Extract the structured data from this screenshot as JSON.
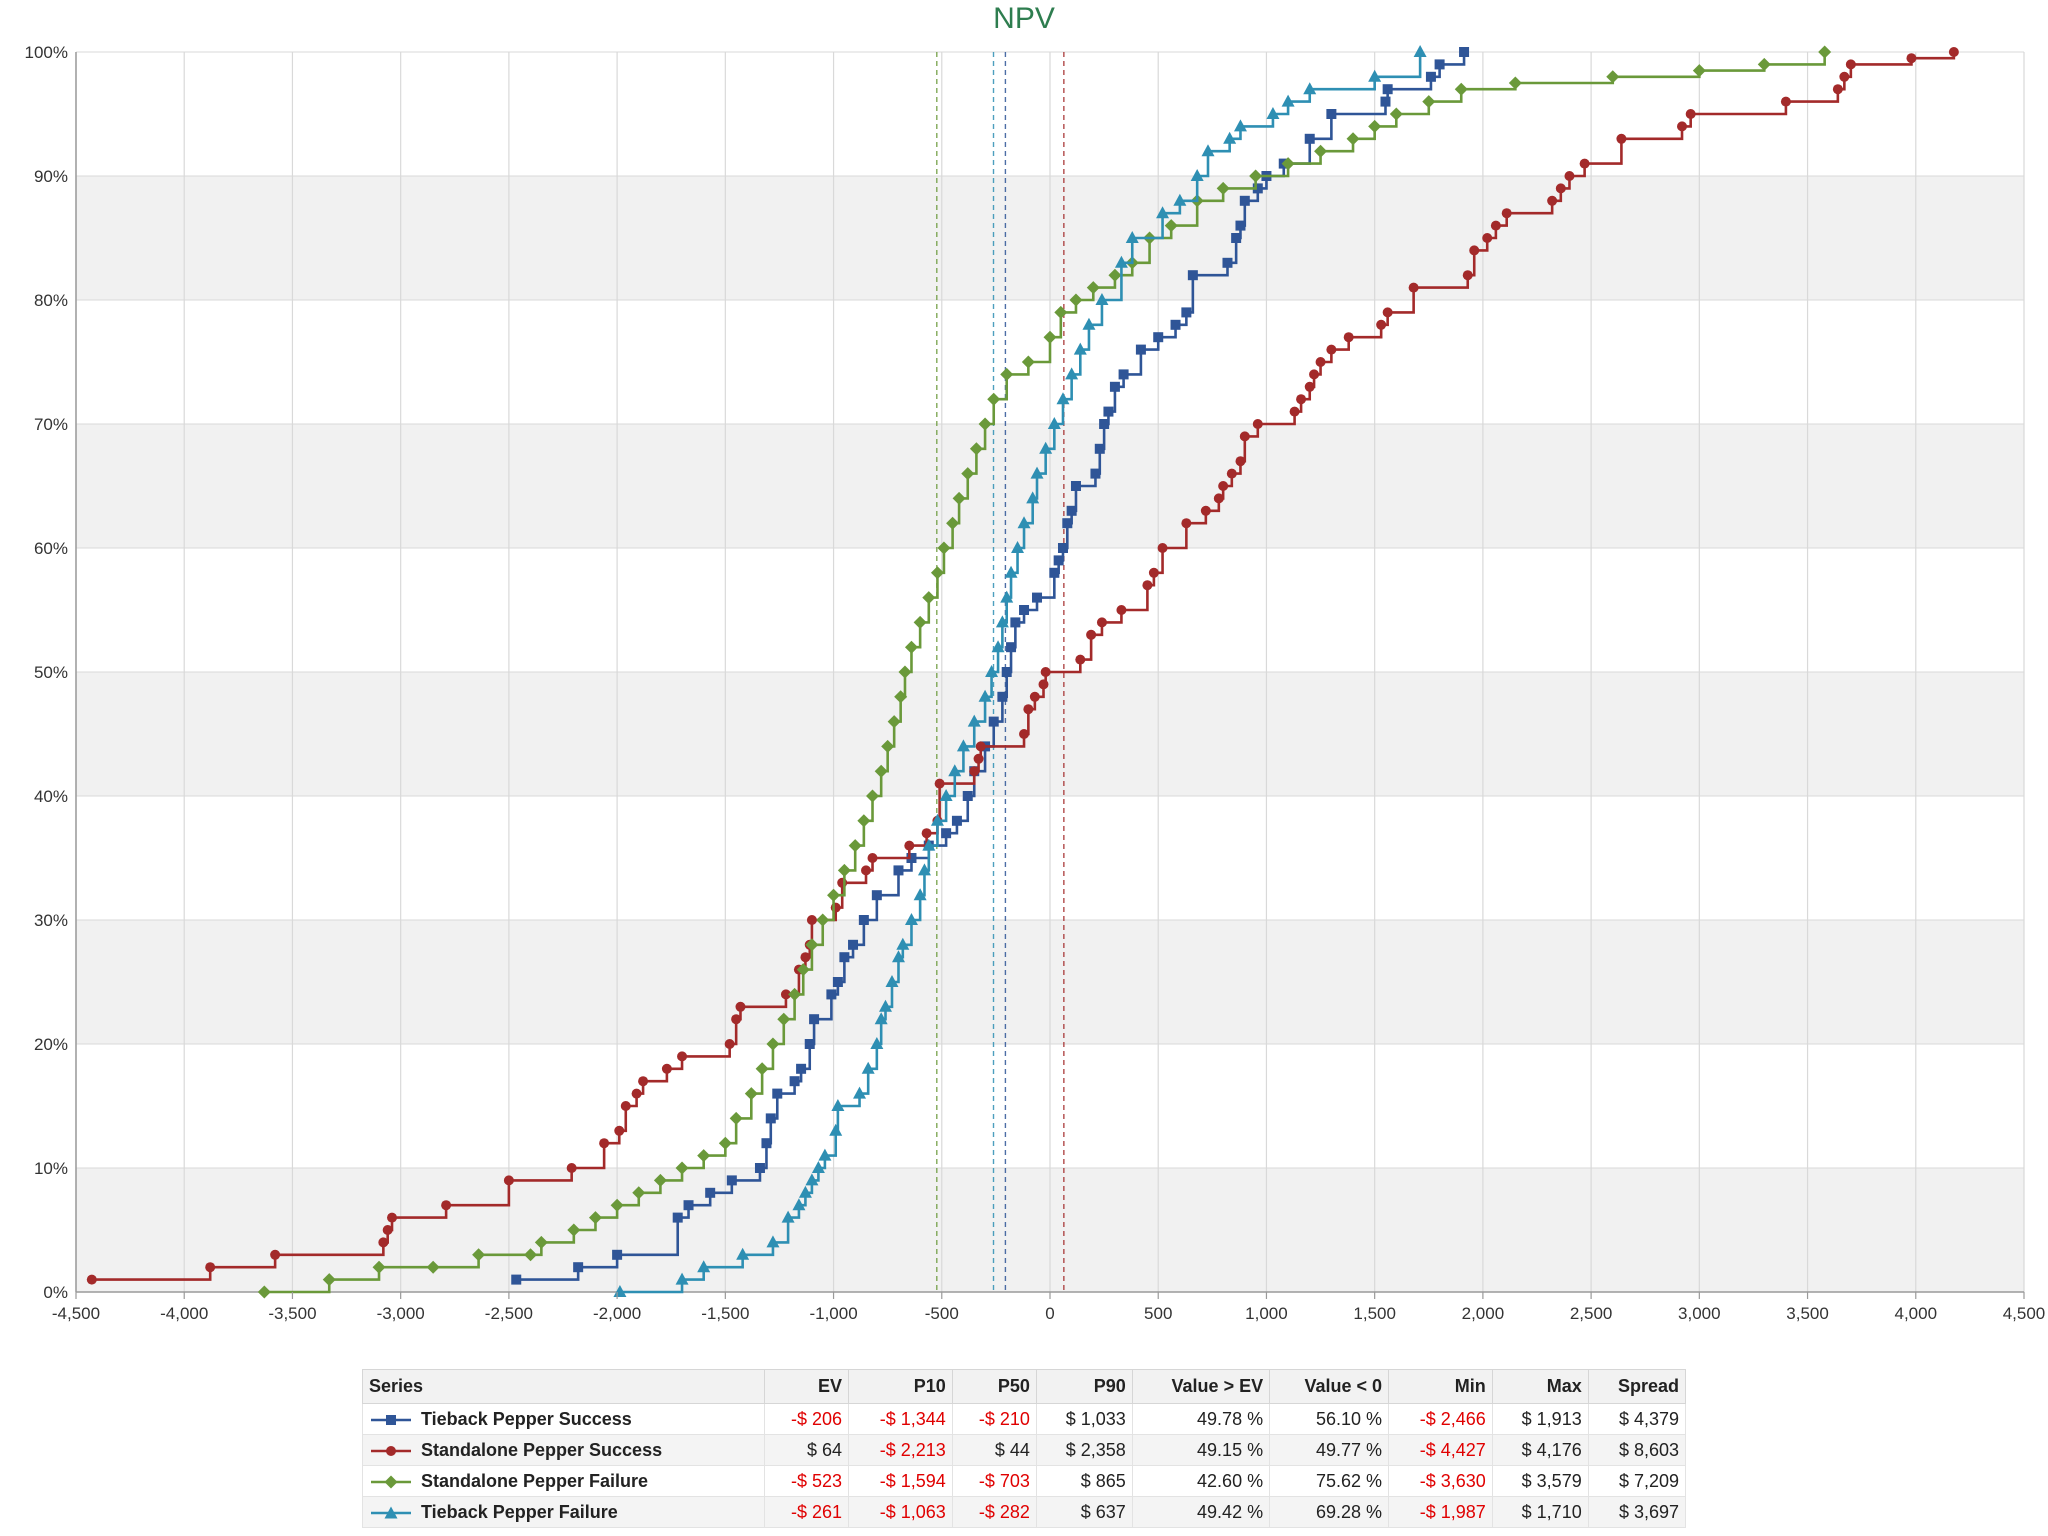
{
  "chart_data": {
    "type": "line",
    "title": "NPV",
    "xlim": [
      -4500,
      4500
    ],
    "ylim": [
      0,
      100
    ],
    "x_ticks": [
      -4500,
      -4000,
      -3500,
      -3000,
      -2500,
      -2000,
      -1500,
      -1000,
      -500,
      0,
      500,
      1000,
      1500,
      2000,
      2500,
      3000,
      3500,
      4000,
      4500
    ],
    "x_tick_labels": [
      "-4,500",
      "-4,000",
      "-3,500",
      "-3,000",
      "-2,500",
      "-2,000",
      "-1,500",
      "-1,000",
      "-500",
      "0",
      "500",
      "1,000",
      "1,500",
      "2,000",
      "2,500",
      "3,000",
      "3,500",
      "4,000",
      "4,500"
    ],
    "y_ticks": [
      0,
      10,
      20,
      30,
      40,
      50,
      60,
      70,
      80,
      90,
      100
    ],
    "y_tick_labels": [
      "0%",
      "10%",
      "20%",
      "30%",
      "40%",
      "50%",
      "60%",
      "70%",
      "80%",
      "90%",
      "100%"
    ],
    "grid": true,
    "alternating_bands": true,
    "series": [
      {
        "name": "Tieback Pepper Success",
        "color": "#2f5597",
        "marker": "square",
        "ev": -206,
        "points": [
          [
            -2466,
            1
          ],
          [
            -2180,
            2
          ],
          [
            -2000,
            3
          ],
          [
            -1720,
            6
          ],
          [
            -1670,
            7
          ],
          [
            -1570,
            8
          ],
          [
            -1470,
            9
          ],
          [
            -1340,
            10
          ],
          [
            -1310,
            12
          ],
          [
            -1290,
            14
          ],
          [
            -1260,
            16
          ],
          [
            -1180,
            17
          ],
          [
            -1150,
            18
          ],
          [
            -1110,
            20
          ],
          [
            -1090,
            22
          ],
          [
            -1010,
            24
          ],
          [
            -980,
            25
          ],
          [
            -950,
            27
          ],
          [
            -910,
            28
          ],
          [
            -860,
            30
          ],
          [
            -800,
            32
          ],
          [
            -700,
            34
          ],
          [
            -640,
            35
          ],
          [
            -560,
            36
          ],
          [
            -480,
            37
          ],
          [
            -430,
            38
          ],
          [
            -380,
            40
          ],
          [
            -350,
            42
          ],
          [
            -300,
            44
          ],
          [
            -260,
            46
          ],
          [
            -220,
            48
          ],
          [
            -200,
            50
          ],
          [
            -180,
            52
          ],
          [
            -160,
            54
          ],
          [
            -120,
            55
          ],
          [
            -60,
            56
          ],
          [
            20,
            58
          ],
          [
            40,
            59
          ],
          [
            60,
            60
          ],
          [
            80,
            62
          ],
          [
            100,
            63
          ],
          [
            120,
            65
          ],
          [
            210,
            66
          ],
          [
            230,
            68
          ],
          [
            250,
            70
          ],
          [
            270,
            71
          ],
          [
            300,
            73
          ],
          [
            340,
            74
          ],
          [
            420,
            76
          ],
          [
            500,
            77
          ],
          [
            580,
            78
          ],
          [
            630,
            79
          ],
          [
            660,
            82
          ],
          [
            820,
            83
          ],
          [
            860,
            85
          ],
          [
            880,
            86
          ],
          [
            900,
            88
          ],
          [
            960,
            89
          ],
          [
            1000,
            90
          ],
          [
            1080,
            91
          ],
          [
            1200,
            93
          ],
          [
            1300,
            95
          ],
          [
            1550,
            96
          ],
          [
            1560,
            97
          ],
          [
            1760,
            98
          ],
          [
            1800,
            99
          ],
          [
            1913,
            100
          ]
        ]
      },
      {
        "name": "Standalone Pepper Success",
        "color": "#a32a2a",
        "marker": "circle",
        "ev": 64,
        "points": [
          [
            -4427,
            1
          ],
          [
            -3880,
            2
          ],
          [
            -3580,
            3
          ],
          [
            -3080,
            4
          ],
          [
            -3060,
            5
          ],
          [
            -3040,
            6
          ],
          [
            -2790,
            7
          ],
          [
            -2500,
            9
          ],
          [
            -2210,
            10
          ],
          [
            -2060,
            12
          ],
          [
            -1990,
            13
          ],
          [
            -1960,
            15
          ],
          [
            -1910,
            16
          ],
          [
            -1880,
            17
          ],
          [
            -1770,
            18
          ],
          [
            -1700,
            19
          ],
          [
            -1480,
            20
          ],
          [
            -1450,
            22
          ],
          [
            -1430,
            23
          ],
          [
            -1220,
            24
          ],
          [
            -1160,
            26
          ],
          [
            -1130,
            27
          ],
          [
            -1110,
            28
          ],
          [
            -1100,
            30
          ],
          [
            -990,
            31
          ],
          [
            -960,
            33
          ],
          [
            -850,
            34
          ],
          [
            -820,
            35
          ],
          [
            -650,
            36
          ],
          [
            -570,
            37
          ],
          [
            -520,
            38
          ],
          [
            -510,
            41
          ],
          [
            -350,
            42
          ],
          [
            -330,
            43
          ],
          [
            -320,
            44
          ],
          [
            -120,
            45
          ],
          [
            -100,
            47
          ],
          [
            -70,
            48
          ],
          [
            -30,
            49
          ],
          [
            -20,
            50
          ],
          [
            140,
            51
          ],
          [
            190,
            53
          ],
          [
            240,
            54
          ],
          [
            330,
            55
          ],
          [
            450,
            57
          ],
          [
            480,
            58
          ],
          [
            520,
            60
          ],
          [
            630,
            62
          ],
          [
            720,
            63
          ],
          [
            780,
            64
          ],
          [
            800,
            65
          ],
          [
            840,
            66
          ],
          [
            880,
            67
          ],
          [
            900,
            69
          ],
          [
            960,
            70
          ],
          [
            1130,
            71
          ],
          [
            1160,
            72
          ],
          [
            1200,
            73
          ],
          [
            1220,
            74
          ],
          [
            1250,
            75
          ],
          [
            1300,
            76
          ],
          [
            1380,
            77
          ],
          [
            1530,
            78
          ],
          [
            1560,
            79
          ],
          [
            1680,
            81
          ],
          [
            1930,
            82
          ],
          [
            1960,
            84
          ],
          [
            2020,
            85
          ],
          [
            2060,
            86
          ],
          [
            2110,
            87
          ],
          [
            2320,
            88
          ],
          [
            2360,
            89
          ],
          [
            2400,
            90
          ],
          [
            2470,
            91
          ],
          [
            2640,
            93
          ],
          [
            2920,
            94
          ],
          [
            2960,
            95
          ],
          [
            3400,
            96
          ],
          [
            3640,
            97
          ],
          [
            3670,
            98
          ],
          [
            3700,
            99
          ],
          [
            3980,
            99.5
          ],
          [
            4176,
            100
          ]
        ]
      },
      {
        "name": "Standalone Pepper Failure",
        "color": "#6a993a",
        "marker": "diamond",
        "ev": -523,
        "points": [
          [
            -3630,
            0
          ],
          [
            -3330,
            1
          ],
          [
            -3100,
            2
          ],
          [
            -2850,
            2
          ],
          [
            -2640,
            3
          ],
          [
            -2400,
            3
          ],
          [
            -2350,
            4
          ],
          [
            -2200,
            5
          ],
          [
            -2100,
            6
          ],
          [
            -2000,
            7
          ],
          [
            -1900,
            8
          ],
          [
            -1800,
            9
          ],
          [
            -1700,
            10
          ],
          [
            -1600,
            11
          ],
          [
            -1500,
            12
          ],
          [
            -1450,
            14
          ],
          [
            -1380,
            16
          ],
          [
            -1330,
            18
          ],
          [
            -1280,
            20
          ],
          [
            -1230,
            22
          ],
          [
            -1180,
            24
          ],
          [
            -1140,
            26
          ],
          [
            -1100,
            28
          ],
          [
            -1050,
            30
          ],
          [
            -1000,
            32
          ],
          [
            -950,
            34
          ],
          [
            -900,
            36
          ],
          [
            -860,
            38
          ],
          [
            -820,
            40
          ],
          [
            -780,
            42
          ],
          [
            -750,
            44
          ],
          [
            -720,
            46
          ],
          [
            -690,
            48
          ],
          [
            -670,
            50
          ],
          [
            -640,
            52
          ],
          [
            -600,
            54
          ],
          [
            -560,
            56
          ],
          [
            -520,
            58
          ],
          [
            -490,
            60
          ],
          [
            -450,
            62
          ],
          [
            -420,
            64
          ],
          [
            -380,
            66
          ],
          [
            -340,
            68
          ],
          [
            -300,
            70
          ],
          [
            -260,
            72
          ],
          [
            -200,
            74
          ],
          [
            -100,
            75
          ],
          [
            0,
            77
          ],
          [
            50,
            79
          ],
          [
            120,
            80
          ],
          [
            200,
            81
          ],
          [
            300,
            82
          ],
          [
            380,
            83
          ],
          [
            460,
            85
          ],
          [
            560,
            86
          ],
          [
            680,
            88
          ],
          [
            800,
            89
          ],
          [
            950,
            90
          ],
          [
            1100,
            91
          ],
          [
            1250,
            92
          ],
          [
            1400,
            93
          ],
          [
            1500,
            94
          ],
          [
            1600,
            95
          ],
          [
            1750,
            96
          ],
          [
            1900,
            97
          ],
          [
            2150,
            97.5
          ],
          [
            2600,
            98
          ],
          [
            3000,
            98.5
          ],
          [
            3300,
            99
          ],
          [
            3579,
            100
          ]
        ]
      },
      {
        "name": "Tieback Pepper Failure",
        "color": "#2e8fb3",
        "marker": "triangle",
        "ev": -261,
        "points": [
          [
            -1987,
            0
          ],
          [
            -1700,
            1
          ],
          [
            -1600,
            2
          ],
          [
            -1420,
            3
          ],
          [
            -1280,
            4
          ],
          [
            -1210,
            6
          ],
          [
            -1160,
            7
          ],
          [
            -1130,
            8
          ],
          [
            -1100,
            9
          ],
          [
            -1070,
            10
          ],
          [
            -1040,
            11
          ],
          [
            -990,
            13
          ],
          [
            -980,
            15
          ],
          [
            -880,
            16
          ],
          [
            -840,
            18
          ],
          [
            -800,
            20
          ],
          [
            -780,
            22
          ],
          [
            -760,
            23
          ],
          [
            -730,
            25
          ],
          [
            -700,
            27
          ],
          [
            -680,
            28
          ],
          [
            -640,
            30
          ],
          [
            -600,
            32
          ],
          [
            -580,
            34
          ],
          [
            -560,
            36
          ],
          [
            -520,
            38
          ],
          [
            -480,
            40
          ],
          [
            -440,
            42
          ],
          [
            -400,
            44
          ],
          [
            -350,
            46
          ],
          [
            -300,
            48
          ],
          [
            -270,
            50
          ],
          [
            -240,
            52
          ],
          [
            -220,
            54
          ],
          [
            -200,
            56
          ],
          [
            -180,
            58
          ],
          [
            -150,
            60
          ],
          [
            -120,
            62
          ],
          [
            -80,
            64
          ],
          [
            -60,
            66
          ],
          [
            -20,
            68
          ],
          [
            20,
            70
          ],
          [
            60,
            72
          ],
          [
            100,
            74
          ],
          [
            140,
            76
          ],
          [
            180,
            78
          ],
          [
            240,
            80
          ],
          [
            330,
            83
          ],
          [
            380,
            85
          ],
          [
            520,
            87
          ],
          [
            600,
            88
          ],
          [
            680,
            90
          ],
          [
            730,
            92
          ],
          [
            830,
            93
          ],
          [
            880,
            94
          ],
          [
            1030,
            95
          ],
          [
            1100,
            96
          ],
          [
            1200,
            97
          ],
          [
            1500,
            98
          ],
          [
            1710,
            100
          ]
        ]
      }
    ]
  },
  "stats_table": {
    "headers": [
      "Series",
      "EV",
      "P10",
      "P50",
      "P90",
      "Value > EV",
      "Value < 0",
      "Min",
      "Max",
      "Spread"
    ],
    "rows": [
      {
        "series": "Tieback Pepper Success",
        "ev": "-$ 206",
        "p10": "-$ 1,344",
        "p50": "-$ 210",
        "p90": "$ 1,033",
        "value_gt_ev": "49.78 %",
        "value_lt_0": "56.10 %",
        "min": "-$ 2,466",
        "max": "$ 1,913",
        "spread": "$ 4,379"
      },
      {
        "series": "Standalone Pepper Success",
        "ev": "$ 64",
        "p10": "-$ 2,213",
        "p50": "$ 44",
        "p90": "$ 2,358",
        "value_gt_ev": "49.15 %",
        "value_lt_0": "49.77 %",
        "min": "-$ 4,427",
        "max": "$ 4,176",
        "spread": "$ 8,603"
      },
      {
        "series": "Standalone Pepper Failure",
        "ev": "-$ 523",
        "p10": "-$ 1,594",
        "p50": "-$ 703",
        "p90": "$ 865",
        "value_gt_ev": "42.60 %",
        "value_lt_0": "75.62 %",
        "min": "-$ 3,630",
        "max": "$ 3,579",
        "spread": "$ 7,209"
      },
      {
        "series": "Tieback Pepper Failure",
        "ev": "-$ 261",
        "p10": "-$ 1,063",
        "p50": "-$ 282",
        "p90": "$ 637",
        "value_gt_ev": "49.42 %",
        "value_lt_0": "69.28 %",
        "min": "-$ 1,987",
        "max": "$ 1,710",
        "spread": "$ 3,697"
      }
    ]
  }
}
